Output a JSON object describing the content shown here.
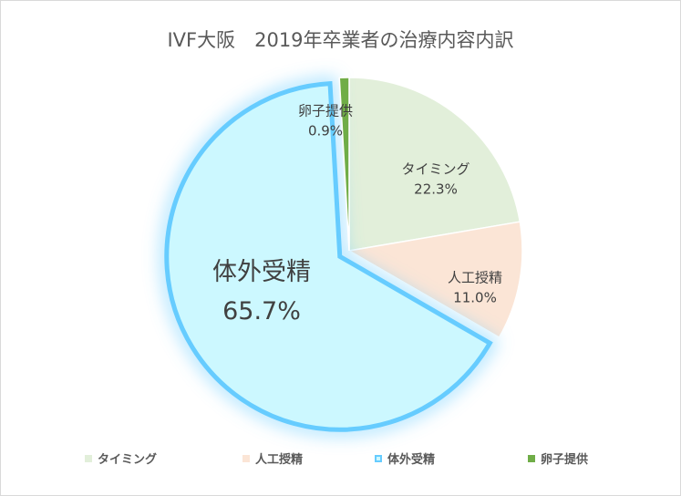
{
  "title": "IVF大阪　2019年卒業者の治療内容内訳",
  "chart_data": {
    "type": "pie",
    "title": "IVF大阪　2019年卒業者の治療内容内訳",
    "legend_position": "bottom",
    "exploded": "体外受精",
    "slices": [
      {
        "label": "タイミング",
        "value": 22.3,
        "value_label": "22.3%",
        "color": "#e2efda"
      },
      {
        "label": "人工授精",
        "value": 11.0,
        "value_label": "11.0%",
        "color": "#fbe5d6"
      },
      {
        "label": "体外受精",
        "value": 65.7,
        "value_label": "65.7%",
        "color": "#ccf8ff",
        "border": "#66ccff"
      },
      {
        "label": "卵子提供",
        "value": 0.9,
        "value_label": "0.9%",
        "color": "#70ad47"
      }
    ]
  }
}
